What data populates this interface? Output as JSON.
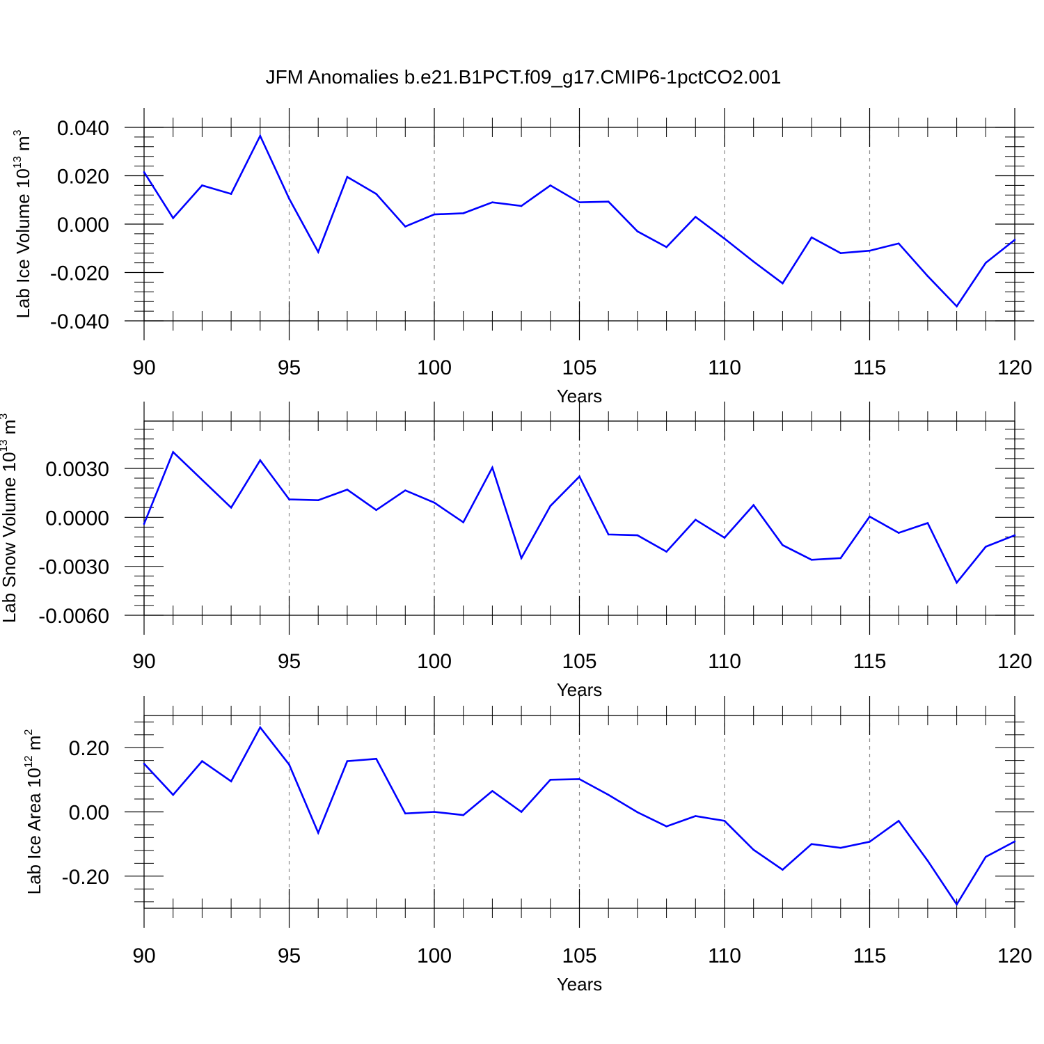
{
  "title": "JFM Anomalies b.e21.B1PCT.f09_g17.CMIP6-1pctCO2.001",
  "colors": {
    "line": "#0000ff",
    "axis": "#000000",
    "grid": "#8a8a8a"
  },
  "chart_data": [
    {
      "type": "line",
      "xlabel": "Years",
      "ylabel": {
        "text": "Lab Ice Volume 10",
        "sup": "13",
        "unit": " m",
        "unit_sup": "3"
      },
      "xlim": [
        90,
        120
      ],
      "ylim": [
        -0.04,
        0.04
      ],
      "xticks": [
        "90",
        "95",
        "100",
        "105",
        "110",
        "115",
        "120"
      ],
      "yticks": [
        {
          "v": 0.04,
          "label": "0.040"
        },
        {
          "v": 0.02,
          "label": "0.020"
        },
        {
          "v": 0.0,
          "label": "0.000"
        },
        {
          "v": -0.02,
          "label": "-0.020"
        },
        {
          "v": -0.04,
          "label": "-0.040"
        }
      ],
      "grid": "vertical dashed at major x ticks",
      "x": [
        90,
        91,
        92,
        93,
        94,
        95,
        96,
        97,
        98,
        99,
        100,
        101,
        102,
        103,
        104,
        105,
        106,
        107,
        108,
        109,
        110,
        111,
        112,
        113,
        114,
        115,
        116,
        117,
        118,
        119,
        120
      ],
      "values": [
        0.0215,
        0.0025,
        0.016,
        0.0125,
        0.0365,
        0.0105,
        -0.0115,
        0.0195,
        0.0125,
        -0.001,
        0.004,
        0.0045,
        0.009,
        0.0075,
        0.016,
        0.009,
        0.0093,
        -0.003,
        -0.0095,
        0.003,
        -0.006,
        -0.0155,
        -0.0245,
        -0.0055,
        -0.012,
        -0.011,
        -0.008,
        -0.0215,
        -0.034,
        -0.016,
        -0.0065
      ]
    },
    {
      "type": "line",
      "xlabel": "Years",
      "ylabel": {
        "text": "Lab Snow Volume 10",
        "sup": "13",
        "unit": " m",
        "unit_sup": "3"
      },
      "xlim": [
        90,
        120
      ],
      "ylim": [
        -0.006,
        0.0059
      ],
      "xticks": [
        "90",
        "95",
        "100",
        "105",
        "110",
        "115",
        "120"
      ],
      "yticks": [
        {
          "v": 0.003,
          "label": "0.0030"
        },
        {
          "v": 0.0,
          "label": "0.0000"
        },
        {
          "v": -0.003,
          "label": "-0.0030"
        },
        {
          "v": -0.006,
          "label": "-0.0060"
        }
      ],
      "grid": "vertical dashed at major x ticks",
      "x": [
        90,
        91,
        92,
        93,
        94,
        95,
        96,
        97,
        98,
        99,
        100,
        101,
        102,
        103,
        104,
        105,
        106,
        107,
        108,
        109,
        110,
        111,
        112,
        113,
        114,
        115,
        116,
        117,
        118,
        119,
        120
      ],
      "values": [
        -0.0004,
        0.004,
        0.0023,
        0.0006,
        0.0035,
        0.0011,
        0.00105,
        0.0017,
        0.00045,
        0.00165,
        0.0009,
        -0.0003,
        0.00305,
        -0.0025,
        0.0007,
        0.0025,
        -0.00105,
        -0.0011,
        -0.0021,
        -0.00015,
        -0.00125,
        0.00075,
        -0.0017,
        -0.0026,
        -0.0025,
        5e-05,
        -0.00095,
        -0.00035,
        -0.004,
        -0.0018,
        -0.0011
      ]
    },
    {
      "type": "line",
      "xlabel": "Years",
      "ylabel": {
        "text": "Lab Ice Area 10",
        "sup": "12",
        "unit": " m",
        "unit_sup": "2"
      },
      "xlim": [
        90,
        120
      ],
      "ylim": [
        -0.3,
        0.3
      ],
      "xticks": [
        "90",
        "95",
        "100",
        "105",
        "110",
        "115",
        "120"
      ],
      "yticks": [
        {
          "v": 0.2,
          "label": "0.20"
        },
        {
          "v": 0.0,
          "label": "0.00"
        },
        {
          "v": -0.2,
          "label": "-0.20"
        }
      ],
      "grid": "vertical dashed at major x ticks",
      "x": [
        90,
        91,
        92,
        93,
        94,
        95,
        96,
        97,
        98,
        99,
        100,
        101,
        102,
        103,
        104,
        105,
        106,
        107,
        108,
        109,
        110,
        111,
        112,
        113,
        114,
        115,
        116,
        117,
        118,
        119,
        120
      ],
      "values": [
        0.15,
        0.053,
        0.158,
        0.095,
        0.263,
        0.147,
        -0.065,
        0.158,
        0.165,
        -0.005,
        0.0,
        -0.01,
        0.065,
        0.0,
        0.1,
        0.102,
        0.053,
        -0.001,
        -0.045,
        -0.013,
        -0.028,
        -0.118,
        -0.18,
        -0.1,
        -0.112,
        -0.093,
        -0.028,
        -0.152,
        -0.288,
        -0.14,
        -0.092
      ]
    }
  ]
}
